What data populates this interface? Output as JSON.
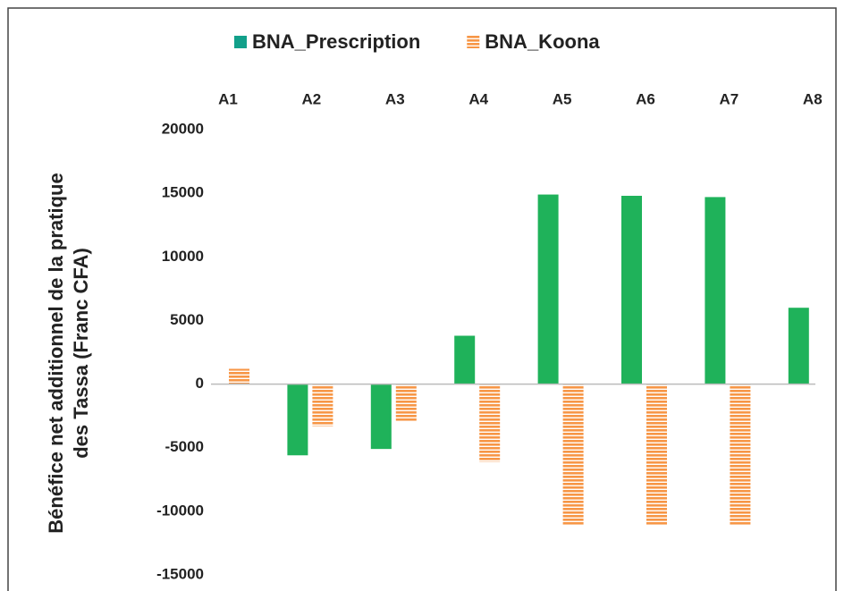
{
  "chart_data": {
    "type": "bar",
    "y_label_lines": [
      "Bénéfice net additionnel de la pratique",
      "des Tassa (Franc CFA)"
    ],
    "categories": [
      "A1",
      "A2",
      "A3",
      "A4",
      "A5",
      "A6",
      "A7",
      "A8"
    ],
    "series": [
      {
        "name": "BNA_Prescription",
        "color": "#1fb25a",
        "values": [
          0,
          -5600,
          -5100,
          3800,
          14900,
          14800,
          14700,
          6000
        ]
      },
      {
        "name": "BNA_Koona",
        "color": "#f79646",
        "values": [
          1200,
          -3300,
          -2900,
          -6100,
          -11100,
          -11100,
          -11100,
          0
        ]
      }
    ],
    "ylim": [
      -15000,
      20000
    ],
    "yticks": [
      -15000,
      -10000,
      -5000,
      0,
      5000,
      10000,
      15000,
      20000
    ],
    "legend": "top"
  }
}
